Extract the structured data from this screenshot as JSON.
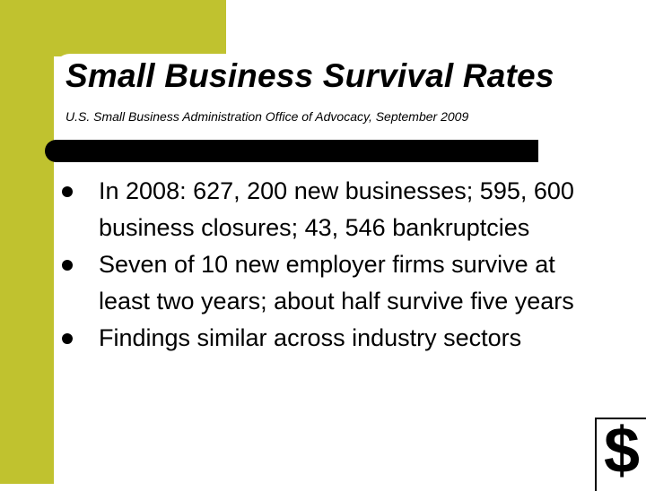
{
  "slide": {
    "title": "Small Business Survival Rates",
    "subtitle": "U.S. Small Business Administration Office of Advocacy, September 2009",
    "bullets": [
      "In 2008: 627, 200 new businesses; 595, 600 business closures; 43, 546 bankruptcies",
      "Seven of 10 new employer firms survive at least two years; about half survive five years",
      "Findings similar across industry sectors"
    ],
    "dollar_symbol": "$"
  },
  "colors": {
    "accent_band": "#c0c22f",
    "divider": "#000000",
    "text": "#000000",
    "background": "#ffffff"
  },
  "icons": {
    "bullet": "filled-circle",
    "corner": "dollar-sign-icon"
  }
}
